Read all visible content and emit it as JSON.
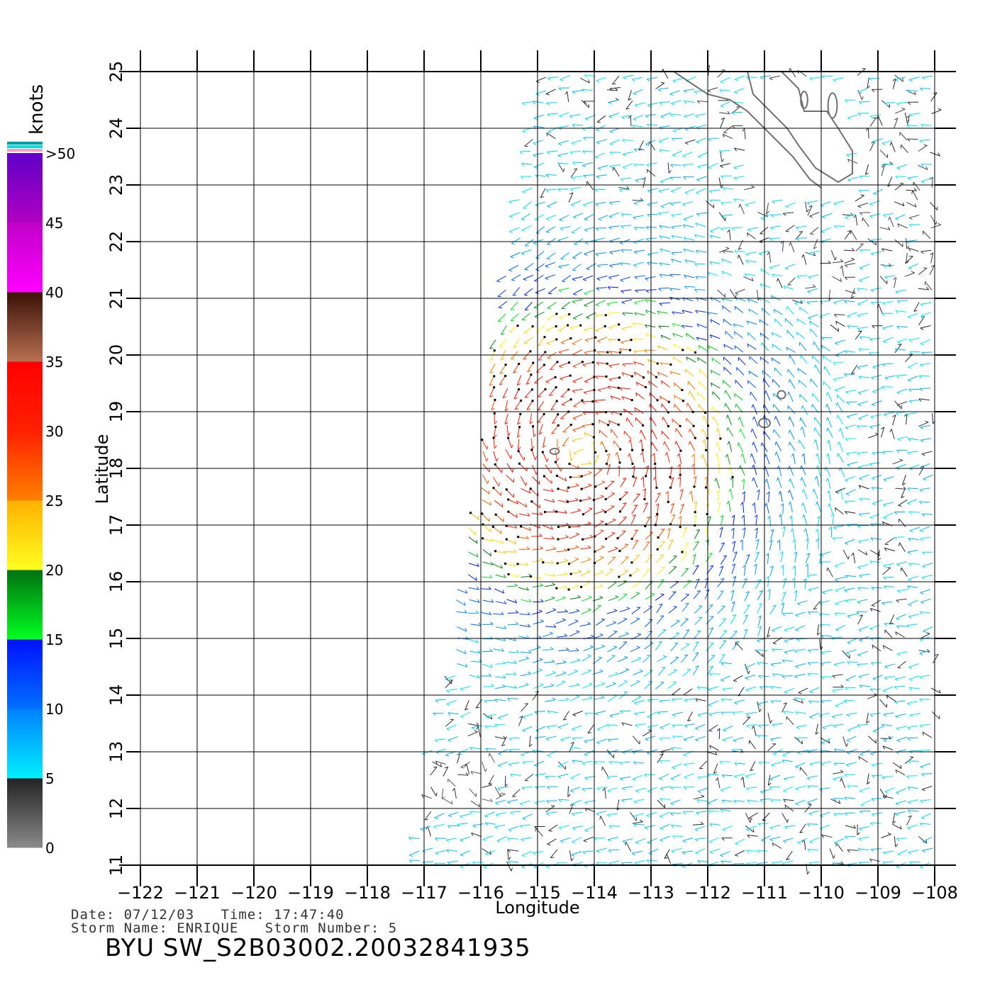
{
  "map": {
    "lon_range": [
      -122,
      -108
    ],
    "lat_range": [
      11,
      25
    ],
    "lon_ticks": [
      "-122",
      "-121",
      "-120",
      "-119",
      "-118",
      "-117",
      "-116",
      "-115",
      "-114",
      "-113",
      "-112",
      "-111",
      "-110",
      "-109",
      "-108"
    ],
    "lat_ticks": [
      "11",
      "12",
      "13",
      "14",
      "15",
      "16",
      "17",
      "18",
      "19",
      "20",
      "21",
      "22",
      "23",
      "24",
      "25"
    ],
    "xlabel": "Longitude",
    "ylabel": "Latitude",
    "grid": true,
    "coastline_color": "#707070"
  },
  "colorbar": {
    "unit_label": "knots",
    "labels": [
      ">50",
      "45",
      "40",
      "35",
      "30",
      "25",
      "20",
      "15",
      "10",
      "5",
      "0"
    ],
    "bins": [
      {
        "min": 0,
        "max": 5,
        "colors": [
          "#8a8a8a",
          "#222222"
        ]
      },
      {
        "min": 5,
        "max": 10,
        "colors": [
          "#00f0ff",
          "#0080ff"
        ]
      },
      {
        "min": 10,
        "max": 15,
        "colors": [
          "#0070ff",
          "#0010ff"
        ]
      },
      {
        "min": 15,
        "max": 20,
        "colors": [
          "#00ff20",
          "#007010"
        ]
      },
      {
        "min": 20,
        "max": 25,
        "colors": [
          "#ffff20",
          "#ffb000"
        ]
      },
      {
        "min": 25,
        "max": 30,
        "colors": [
          "#ff8000",
          "#ff2000"
        ]
      },
      {
        "min": 30,
        "max": 35,
        "colors": [
          "#ff2000",
          "#ff0000"
        ]
      },
      {
        "min": 35,
        "max": 40,
        "colors": [
          "#b87050",
          "#3a1008"
        ]
      },
      {
        "min": 40,
        "max": 45,
        "colors": [
          "#ff00ff",
          "#c000c8"
        ]
      },
      {
        "min": 45,
        "max": 50,
        "colors": [
          "#b000c0",
          "#6000c8"
        ]
      }
    ],
    "top_stripes": [
      "#00a0a0",
      "#00e0e0",
      "#ffa0c0"
    ]
  },
  "footer": {
    "date_line": "Date: 07/12/03   Time: 17:47:40",
    "storm_line": "Storm Name: ENRIQUE   Storm Number: 5",
    "product": "BYU SW_S2B03002.20032841935"
  }
}
